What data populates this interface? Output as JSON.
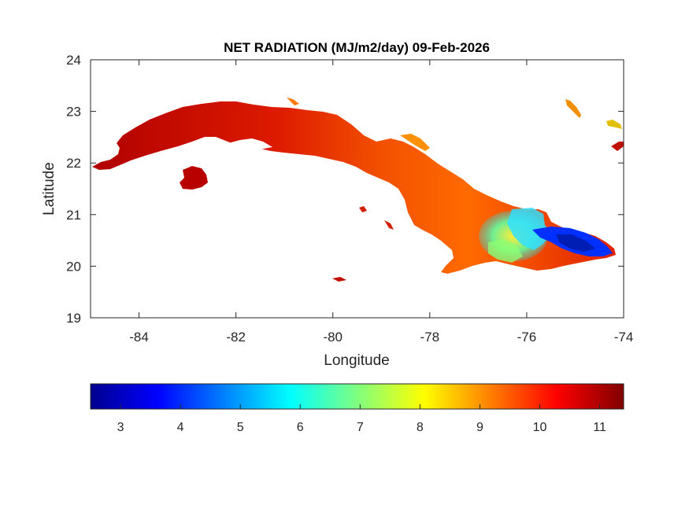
{
  "chart_data": {
    "type": "heatmap",
    "title": "NET RADIATION (MJ/m2/day) 09-Feb-2026",
    "xlabel": "Longitude",
    "ylabel": "Latitude",
    "xlim": [
      -85,
      -74
    ],
    "ylim": [
      19,
      24
    ],
    "x_ticks": [
      -84,
      -82,
      -80,
      -78,
      -76,
      -74
    ],
    "y_ticks": [
      19,
      20,
      21,
      22,
      23,
      24
    ],
    "colorbar": {
      "colormap": "jet",
      "range": [
        2.5,
        11.4
      ],
      "ticks": [
        3,
        4,
        5,
        6,
        7,
        8,
        9,
        10,
        11
      ],
      "orientation": "horizontal",
      "placement": "bottom"
    },
    "grid": false,
    "regions": [
      {
        "lon": -83.0,
        "lat": 21.6,
        "value": 10.8
      },
      {
        "lon": -81.5,
        "lat": 22.6,
        "value": 10.6
      },
      {
        "lon": -80.0,
        "lat": 22.4,
        "value": 10.3
      },
      {
        "lon": -78.3,
        "lat": 21.6,
        "value": 9.8
      },
      {
        "lon": -77.5,
        "lat": 21.0,
        "value": 9.6
      },
      {
        "lon": -76.8,
        "lat": 20.5,
        "value": 8.0
      },
      {
        "lon": -75.8,
        "lat": 20.8,
        "value": 6.2
      },
      {
        "lon": -75.1,
        "lat": 20.4,
        "value": 3.6
      }
    ]
  }
}
